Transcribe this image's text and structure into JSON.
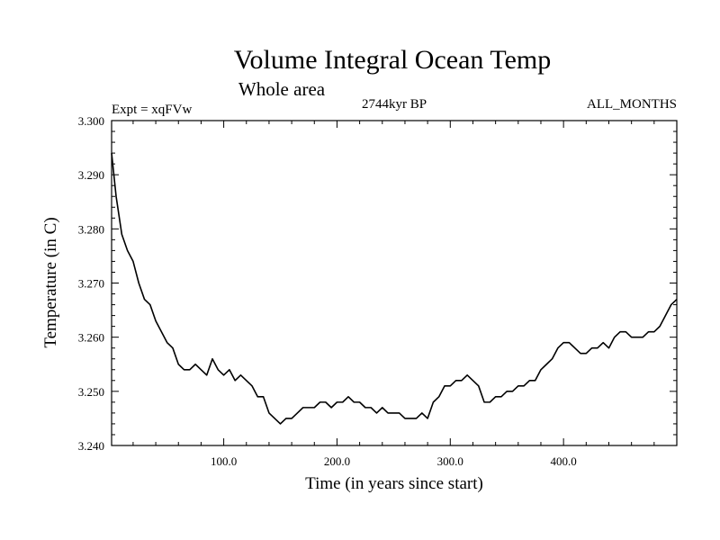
{
  "chart_data": {
    "type": "line",
    "title": "Volume Integral Ocean Temp",
    "subtitle": "Whole area",
    "left_label": "Expt = xqFVw",
    "center_label": "2744kyr BP",
    "right_label": "ALL_MONTHS",
    "xlabel": "Time (in years since start)",
    "ylabel": "Temperature (in C)",
    "xlim": [
      1,
      500
    ],
    "ylim": [
      3.24,
      3.3
    ],
    "x_ticks": [
      100,
      200,
      300,
      400
    ],
    "x_tick_labels": [
      "100.0",
      "200.0",
      "300.0",
      "400.0"
    ],
    "y_ticks": [
      3.24,
      3.25,
      3.26,
      3.27,
      3.28,
      3.29,
      3.3
    ],
    "y_tick_labels": [
      "3.240",
      "3.250",
      "3.260",
      "3.270",
      "3.280",
      "3.290",
      "3.300"
    ],
    "grid": false,
    "series": [
      {
        "name": "Volume Integral Ocean Temp",
        "color": "#000000",
        "x": [
          1,
          5,
          10,
          15,
          20,
          25,
          30,
          35,
          40,
          45,
          50,
          55,
          60,
          65,
          70,
          75,
          80,
          85,
          90,
          95,
          100,
          105,
          110,
          115,
          120,
          125,
          130,
          135,
          140,
          145,
          150,
          155,
          160,
          165,
          170,
          175,
          180,
          185,
          190,
          195,
          200,
          205,
          210,
          215,
          220,
          225,
          230,
          235,
          240,
          245,
          250,
          255,
          260,
          265,
          270,
          275,
          280,
          285,
          290,
          295,
          300,
          305,
          310,
          315,
          320,
          325,
          330,
          335,
          340,
          345,
          350,
          355,
          360,
          365,
          370,
          375,
          380,
          385,
          390,
          395,
          400,
          405,
          410,
          415,
          420,
          425,
          430,
          435,
          440,
          445,
          450,
          455,
          460,
          465,
          470,
          475,
          480,
          485,
          490,
          495,
          500
        ],
        "values": [
          3.294,
          3.286,
          3.279,
          3.276,
          3.274,
          3.27,
          3.267,
          3.266,
          3.263,
          3.261,
          3.259,
          3.258,
          3.255,
          3.254,
          3.254,
          3.255,
          3.254,
          3.253,
          3.256,
          3.254,
          3.253,
          3.254,
          3.252,
          3.253,
          3.252,
          3.251,
          3.249,
          3.249,
          3.246,
          3.245,
          3.244,
          3.245,
          3.245,
          3.246,
          3.247,
          3.247,
          3.247,
          3.248,
          3.248,
          3.247,
          3.248,
          3.248,
          3.249,
          3.248,
          3.248,
          3.247,
          3.247,
          3.246,
          3.247,
          3.246,
          3.246,
          3.246,
          3.245,
          3.245,
          3.245,
          3.246,
          3.245,
          3.248,
          3.249,
          3.251,
          3.251,
          3.252,
          3.252,
          3.253,
          3.252,
          3.251,
          3.248,
          3.248,
          3.249,
          3.249,
          3.25,
          3.25,
          3.251,
          3.251,
          3.252,
          3.252,
          3.254,
          3.255,
          3.256,
          3.258,
          3.259,
          3.259,
          3.258,
          3.257,
          3.257,
          3.258,
          3.258,
          3.259,
          3.258,
          3.26,
          3.261,
          3.261,
          3.26,
          3.26,
          3.26,
          3.261,
          3.261,
          3.262,
          3.264,
          3.266,
          3.267
        ]
      }
    ]
  }
}
